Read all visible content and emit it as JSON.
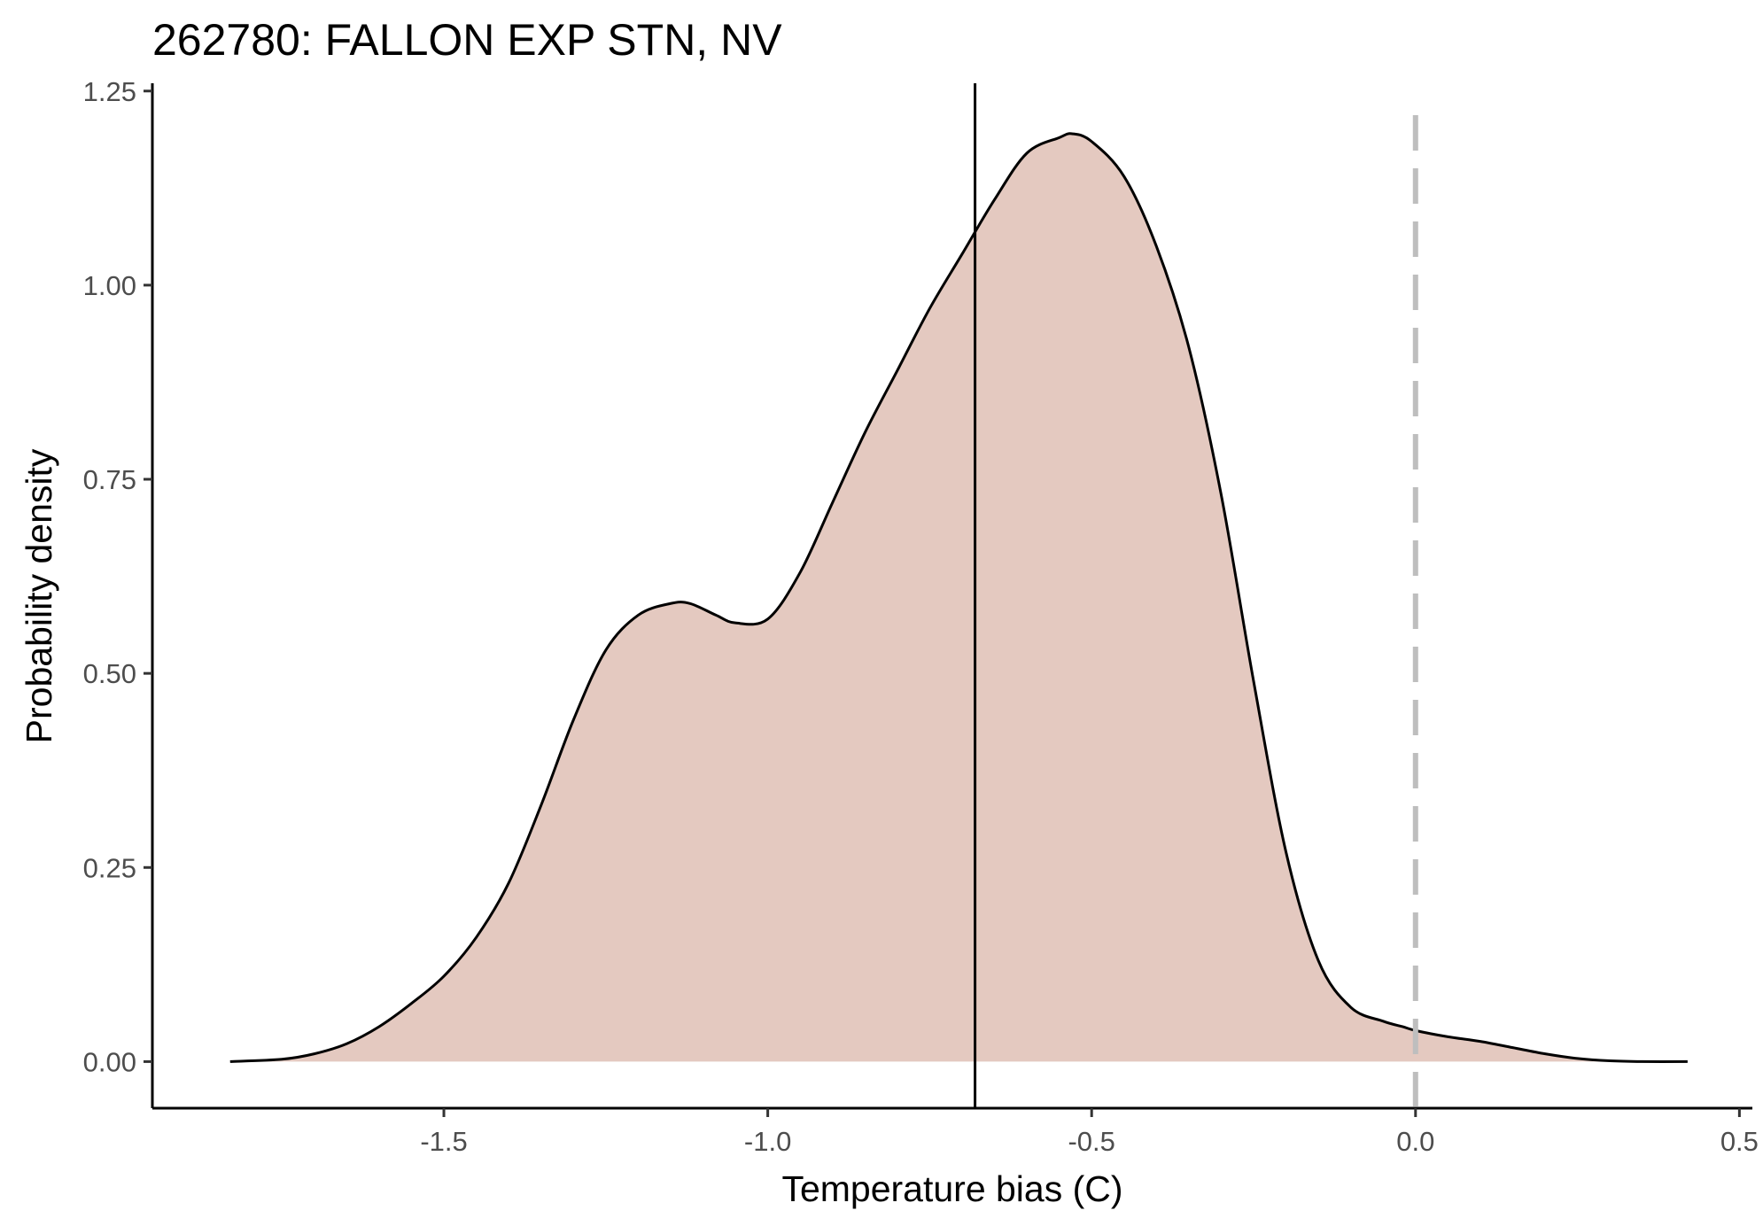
{
  "chart_data": {
    "type": "area",
    "title": "262780: FALLON EXP STN, NV",
    "xlabel": "Temperature bias (C)",
    "ylabel": "Probability density",
    "xlim": [
      -1.95,
      0.52
    ],
    "ylim": [
      -0.06,
      1.26
    ],
    "x_ticks": [
      -1.5,
      -1.0,
      -0.5,
      0.0,
      0.5
    ],
    "x_tick_labels": [
      "-1.5",
      "-1.0",
      "-0.5",
      "0.0",
      "0.5"
    ],
    "y_ticks": [
      0.0,
      0.25,
      0.5,
      0.75,
      1.0,
      1.25
    ],
    "y_tick_labels": [
      "0.00",
      "0.25",
      "0.50",
      "0.75",
      "1.00",
      "1.25"
    ],
    "grid": false,
    "fill_color": "#e4c9c0",
    "line_color": "#000000",
    "density": {
      "x": [
        -1.83,
        -1.75,
        -1.7,
        -1.65,
        -1.6,
        -1.55,
        -1.5,
        -1.45,
        -1.4,
        -1.35,
        -1.3,
        -1.25,
        -1.2,
        -1.15,
        -1.12,
        -1.08,
        -1.05,
        -1.0,
        -0.95,
        -0.9,
        -0.85,
        -0.8,
        -0.75,
        -0.7,
        -0.65,
        -0.6,
        -0.55,
        -0.53,
        -0.5,
        -0.45,
        -0.4,
        -0.35,
        -0.3,
        -0.25,
        -0.2,
        -0.15,
        -0.1,
        -0.05,
        -0.02,
        0.0,
        0.05,
        0.1,
        0.15,
        0.2,
        0.25,
        0.3,
        0.35,
        0.42
      ],
      "y": [
        0.0,
        0.003,
        0.01,
        0.023,
        0.045,
        0.075,
        0.11,
        0.16,
        0.23,
        0.33,
        0.44,
        0.53,
        0.575,
        0.59,
        0.59,
        0.575,
        0.565,
        0.57,
        0.63,
        0.72,
        0.81,
        0.89,
        0.97,
        1.04,
        1.11,
        1.17,
        1.19,
        1.195,
        1.185,
        1.14,
        1.05,
        0.92,
        0.73,
        0.49,
        0.27,
        0.13,
        0.07,
        0.052,
        0.045,
        0.04,
        0.032,
        0.026,
        0.018,
        0.01,
        0.004,
        0.001,
        0.0,
        0.0
      ]
    },
    "vertical_lines": [
      {
        "x": -0.68,
        "style": "solid",
        "color": "#000000"
      },
      {
        "x": 0.0,
        "style": "dashed",
        "color": "#bebebe"
      }
    ]
  }
}
